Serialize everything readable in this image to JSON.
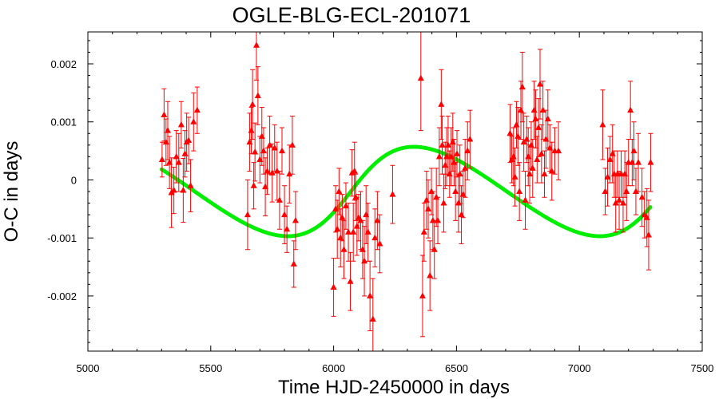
{
  "chart_data": {
    "type": "scatter",
    "title": "OGLE-BLG-ECL-201071",
    "xlabel": "Time HJD-2450000 in days",
    "ylabel": "O-C in days",
    "xlim": [
      5000,
      7500
    ],
    "ylim": [
      -0.00295,
      0.00255
    ],
    "x_ticks": [
      5000,
      5500,
      6000,
      6500,
      7000,
      7500
    ],
    "x_tick_labels": [
      "5000",
      "5500",
      "6000",
      "6500",
      "7000",
      "7500"
    ],
    "y_ticks": [
      0.002,
      0.001,
      0,
      -0.001,
      -0.002
    ],
    "y_tick_labels": [
      "0.002",
      "0.001",
      "0",
      "-0.001",
      "-0.002"
    ],
    "x_minor_step": 100,
    "y_minor_step": 0.0002,
    "grid": false,
    "colors": {
      "points": "#ff0000",
      "fit": "#00ee00"
    },
    "series": [
      {
        "kind": "points_with_errorbars",
        "points": [
          {
            "x": 5302,
            "y": 0.00035,
            "err": 0.0003
          },
          {
            "x": 5310,
            "y": 0.00112,
            "err": 0.00045
          },
          {
            "x": 5318,
            "y": 0.00065,
            "err": 0.0004
          },
          {
            "x": 5325,
            "y": 0.00085,
            "err": 0.0005
          },
          {
            "x": 5332,
            "y": 0.0003,
            "err": 0.00045
          },
          {
            "x": 5340,
            "y": -0.00022,
            "err": 0.0006
          },
          {
            "x": 5350,
            "y": -0.00018,
            "err": 0.0004
          },
          {
            "x": 5360,
            "y": 0.0004,
            "err": 0.00045
          },
          {
            "x": 5370,
            "y": 0.0003,
            "err": 0.0005
          },
          {
            "x": 5380,
            "y": 0.00095,
            "err": 0.0004
          },
          {
            "x": 5388,
            "y": -0.00018,
            "err": 0.00055
          },
          {
            "x": 5395,
            "y": 0.00045,
            "err": 0.0004
          },
          {
            "x": 5402,
            "y": 0.00065,
            "err": 0.0005
          },
          {
            "x": 5410,
            "y": 0.00068,
            "err": 0.0004
          },
          {
            "x": 5418,
            "y": -0.0001,
            "err": 0.00045
          },
          {
            "x": 5430,
            "y": 0.001,
            "err": 0.0005
          },
          {
            "x": 5445,
            "y": 0.0012,
            "err": 0.0004
          },
          {
            "x": 5650,
            "y": -0.0006,
            "err": 0.0006
          },
          {
            "x": 5658,
            "y": 0.00065,
            "err": 0.0005
          },
          {
            "x": 5665,
            "y": 0.00085,
            "err": 0.0004
          },
          {
            "x": 5670,
            "y": 0.0013,
            "err": 0.0006
          },
          {
            "x": 5675,
            "y": -0.0001,
            "err": 0.0004
          },
          {
            "x": 5680,
            "y": 0.00048,
            "err": 0.0005
          },
          {
            "x": 5686,
            "y": 0.00232,
            "err": 0.0006
          },
          {
            "x": 5692,
            "y": 0.00145,
            "err": 0.0005
          },
          {
            "x": 5700,
            "y": 0.00035,
            "err": 0.0004
          },
          {
            "x": 5708,
            "y": 0.00075,
            "err": 0.0005
          },
          {
            "x": 5715,
            "y": 0.0005,
            "err": 0.0004
          },
          {
            "x": 5722,
            "y": -0.00012,
            "err": 0.0005
          },
          {
            "x": 5730,
            "y": 0.00015,
            "err": 0.0004
          },
          {
            "x": 5740,
            "y": 0.0006,
            "err": 0.0005
          },
          {
            "x": 5750,
            "y": 0.00012,
            "err": 0.0005
          },
          {
            "x": 5760,
            "y": 0.00055,
            "err": 0.0004
          },
          {
            "x": 5770,
            "y": 0.00015,
            "err": 0.0005
          },
          {
            "x": 5780,
            "y": -0.00035,
            "err": 0.0005
          },
          {
            "x": 5790,
            "y": 0.0005,
            "err": 0.0004
          },
          {
            "x": 5800,
            "y": -0.0006,
            "err": 0.0005
          },
          {
            "x": 5810,
            "y": -0.00085,
            "err": 0.0004
          },
          {
            "x": 5820,
            "y": 0.0001,
            "err": 0.0005
          },
          {
            "x": 5832,
            "y": 0.0006,
            "err": 0.0005
          },
          {
            "x": 5838,
            "y": -0.00145,
            "err": 0.0004
          },
          {
            "x": 5845,
            "y": -0.0007,
            "err": 0.0005
          },
          {
            "x": 6000,
            "y": -0.00185,
            "err": 0.0005
          },
          {
            "x": 6008,
            "y": -0.0005,
            "err": 0.0004
          },
          {
            "x": 6015,
            "y": -0.00085,
            "err": 0.0005
          },
          {
            "x": 6022,
            "y": -0.0002,
            "err": 0.0004
          },
          {
            "x": 6028,
            "y": -0.001,
            "err": 0.0005
          },
          {
            "x": 6035,
            "y": -0.00065,
            "err": 0.0004
          },
          {
            "x": 6042,
            "y": -0.0012,
            "err": 0.0005
          },
          {
            "x": 6050,
            "y": -0.00045,
            "err": 0.0004
          },
          {
            "x": 6060,
            "y": -0.0009,
            "err": 0.0005
          },
          {
            "x": 6068,
            "y": -0.00175,
            "err": 0.0005
          },
          {
            "x": 6075,
            "y": 0.00012,
            "err": 0.0004
          },
          {
            "x": 6080,
            "y": -0.0009,
            "err": 0.0005
          },
          {
            "x": 6085,
            "y": 0.00015,
            "err": 0.0005
          },
          {
            "x": 6090,
            "y": -0.0003,
            "err": 0.0004
          },
          {
            "x": 6095,
            "y": -0.0008,
            "err": 0.0005
          },
          {
            "x": 6102,
            "y": -0.00065,
            "err": 0.0004
          },
          {
            "x": 6110,
            "y": -0.0007,
            "err": 0.0005
          },
          {
            "x": 6118,
            "y": -0.0012,
            "err": 0.0005
          },
          {
            "x": 6125,
            "y": -0.0014,
            "err": 0.0006
          },
          {
            "x": 6132,
            "y": -0.0006,
            "err": 0.0005
          },
          {
            "x": 6140,
            "y": -0.0009,
            "err": 0.0005
          },
          {
            "x": 6148,
            "y": -0.002,
            "err": 0.0006
          },
          {
            "x": 6160,
            "y": -0.0024,
            "err": 0.0007
          },
          {
            "x": 6168,
            "y": -0.001,
            "err": 0.0005
          },
          {
            "x": 6178,
            "y": -0.0007,
            "err": 0.0005
          },
          {
            "x": 6188,
            "y": -0.0011,
            "err": 0.0005
          },
          {
            "x": 6240,
            "y": -0.00025,
            "err": 0.0005
          },
          {
            "x": 6355,
            "y": 0.00175,
            "err": 0.0009
          },
          {
            "x": 6362,
            "y": -0.002,
            "err": 0.0007
          },
          {
            "x": 6368,
            "y": -0.0009,
            "err": 0.0005
          },
          {
            "x": 6378,
            "y": -0.00035,
            "err": 0.0005
          },
          {
            "x": 6385,
            "y": -0.0005,
            "err": 0.0005
          },
          {
            "x": 6392,
            "y": -0.00165,
            "err": 0.0006
          },
          {
            "x": 6398,
            "y": -0.0002,
            "err": 0.0004
          },
          {
            "x": 6404,
            "y": -0.0007,
            "err": 0.0005
          },
          {
            "x": 6410,
            "y": -0.0012,
            "err": 0.0005
          },
          {
            "x": 6418,
            "y": -0.0003,
            "err": 0.0005
          },
          {
            "x": 6424,
            "y": -0.0007,
            "err": 0.0004
          },
          {
            "x": 6430,
            "y": 0.0004,
            "err": 0.0005
          },
          {
            "x": 6438,
            "y": 0.0013,
            "err": 0.0006
          },
          {
            "x": 6442,
            "y": 0.0006,
            "err": 0.0005
          },
          {
            "x": 6448,
            "y": -0.0004,
            "err": 0.0005
          },
          {
            "x": 6454,
            "y": 0.00025,
            "err": 0.0004
          },
          {
            "x": 6460,
            "y": 0.0004,
            "err": 0.0005
          },
          {
            "x": 6466,
            "y": 0.0006,
            "err": 0.0005
          },
          {
            "x": 6472,
            "y": 0.0001,
            "err": 0.0004
          },
          {
            "x": 6478,
            "y": 0.0004,
            "err": 0.0005
          },
          {
            "x": 6485,
            "y": 0.00065,
            "err": 0.0005
          },
          {
            "x": 6490,
            "y": 0.0003,
            "err": 0.0004
          },
          {
            "x": 6496,
            "y": -0.0002,
            "err": 0.0005
          },
          {
            "x": 6502,
            "y": 0.00045,
            "err": 0.0004
          },
          {
            "x": 6508,
            "y": -0.0004,
            "err": 0.0005
          },
          {
            "x": 6514,
            "y": 0.0001,
            "err": 0.0005
          },
          {
            "x": 6520,
            "y": -0.0006,
            "err": 0.0005
          },
          {
            "x": 6527,
            "y": -0.00025,
            "err": 0.0004
          },
          {
            "x": 6535,
            "y": 0.0002,
            "err": 0.0005
          },
          {
            "x": 6545,
            "y": 0.0005,
            "err": 0.0005
          },
          {
            "x": 6555,
            "y": 0.0007,
            "err": 0.0005
          },
          {
            "x": 6718,
            "y": 0.0008,
            "err": 0.0005
          },
          {
            "x": 6725,
            "y": 0.00035,
            "err": 0.0004
          },
          {
            "x": 6732,
            "y": 0.0004,
            "err": 0.0005
          },
          {
            "x": 6738,
            "y": 5e-05,
            "err": 0.0005
          },
          {
            "x": 6744,
            "y": 0.00095,
            "err": 0.0004
          },
          {
            "x": 6750,
            "y": 0.00075,
            "err": 0.0005
          },
          {
            "x": 6756,
            "y": -0.0002,
            "err": 0.0005
          },
          {
            "x": 6762,
            "y": 0.0012,
            "err": 0.0005
          },
          {
            "x": 6768,
            "y": 0.0016,
            "err": 0.0006
          },
          {
            "x": 6774,
            "y": 0.00065,
            "err": 0.0005
          },
          {
            "x": 6780,
            "y": -0.00035,
            "err": 0.0005
          },
          {
            "x": 6786,
            "y": 0.0007,
            "err": 0.0004
          },
          {
            "x": 6792,
            "y": 0.0004,
            "err": 0.0005
          },
          {
            "x": 6798,
            "y": 0.0001,
            "err": 0.0005
          },
          {
            "x": 6804,
            "y": 0.0006,
            "err": 0.0004
          },
          {
            "x": 6810,
            "y": 0.0002,
            "err": 0.0005
          },
          {
            "x": 6816,
            "y": 0.0012,
            "err": 0.0005
          },
          {
            "x": 6822,
            "y": 0.00105,
            "err": 0.0005
          },
          {
            "x": 6828,
            "y": 0.00035,
            "err": 0.0004
          },
          {
            "x": 6834,
            "y": 0.0009,
            "err": 0.0005
          },
          {
            "x": 6840,
            "y": 0.00165,
            "err": 0.0006
          },
          {
            "x": 6846,
            "y": 0.00045,
            "err": 0.0005
          },
          {
            "x": 6852,
            "y": 0.0012,
            "err": 0.0005
          },
          {
            "x": 6858,
            "y": 0.0001,
            "err": 0.0004
          },
          {
            "x": 6864,
            "y": 0.0007,
            "err": 0.0005
          },
          {
            "x": 6872,
            "y": 0.00105,
            "err": 0.0005
          },
          {
            "x": 6880,
            "y": 0.00055,
            "err": 0.0004
          },
          {
            "x": 6888,
            "y": 0.00015,
            "err": 0.0005
          },
          {
            "x": 6900,
            "y": 0.0005,
            "err": 0.0004
          },
          {
            "x": 6915,
            "y": 0.0005,
            "err": 0.0005
          },
          {
            "x": 7095,
            "y": 0.00095,
            "err": 0.0006
          },
          {
            "x": 7105,
            "y": -0.0002,
            "err": 0.0004
          },
          {
            "x": 7115,
            "y": 5e-05,
            "err": 0.0005
          },
          {
            "x": 7125,
            "y": 0.00035,
            "err": 0.0004
          },
          {
            "x": 7135,
            "y": 0.00045,
            "err": 0.0005
          },
          {
            "x": 7142,
            "y": 0.0001,
            "err": 0.0004
          },
          {
            "x": 7148,
            "y": -0.0004,
            "err": 0.0005
          },
          {
            "x": 7155,
            "y": 0.0001,
            "err": 0.0004
          },
          {
            "x": 7162,
            "y": -0.00035,
            "err": 0.0005
          },
          {
            "x": 7170,
            "y": 0.0001,
            "err": 0.0004
          },
          {
            "x": 7178,
            "y": -0.0004,
            "err": 0.0005
          },
          {
            "x": 7185,
            "y": 0.0001,
            "err": 0.0004
          },
          {
            "x": 7192,
            "y": -0.0002,
            "err": 0.0005
          },
          {
            "x": 7200,
            "y": 0.0003,
            "err": 0.0004
          },
          {
            "x": 7208,
            "y": 0.0012,
            "err": 0.0005
          },
          {
            "x": 7215,
            "y": 0.0003,
            "err": 0.0004
          },
          {
            "x": 7222,
            "y": 0.0005,
            "err": 0.0005
          },
          {
            "x": 7230,
            "y": -0.0002,
            "err": 0.0004
          },
          {
            "x": 7240,
            "y": 0.0003,
            "err": 0.0005
          },
          {
            "x": 7255,
            "y": -0.0003,
            "err": 0.0005
          },
          {
            "x": 7265,
            "y": -0.0006,
            "err": 0.0004
          },
          {
            "x": 7275,
            "y": -0.00065,
            "err": 0.0005
          },
          {
            "x": 7282,
            "y": -0.00095,
            "err": 0.0006
          },
          {
            "x": 7290,
            "y": 0.0003,
            "err": 0.0005
          }
        ]
      },
      {
        "kind": "fit_curve",
        "model": {
          "offset": -0.0002,
          "amplitude": 0.00077,
          "period": 1270,
          "phase": 4800,
          "skew_e": 0.3
        },
        "x_range": [
          5300,
          7290
        ]
      }
    ]
  }
}
